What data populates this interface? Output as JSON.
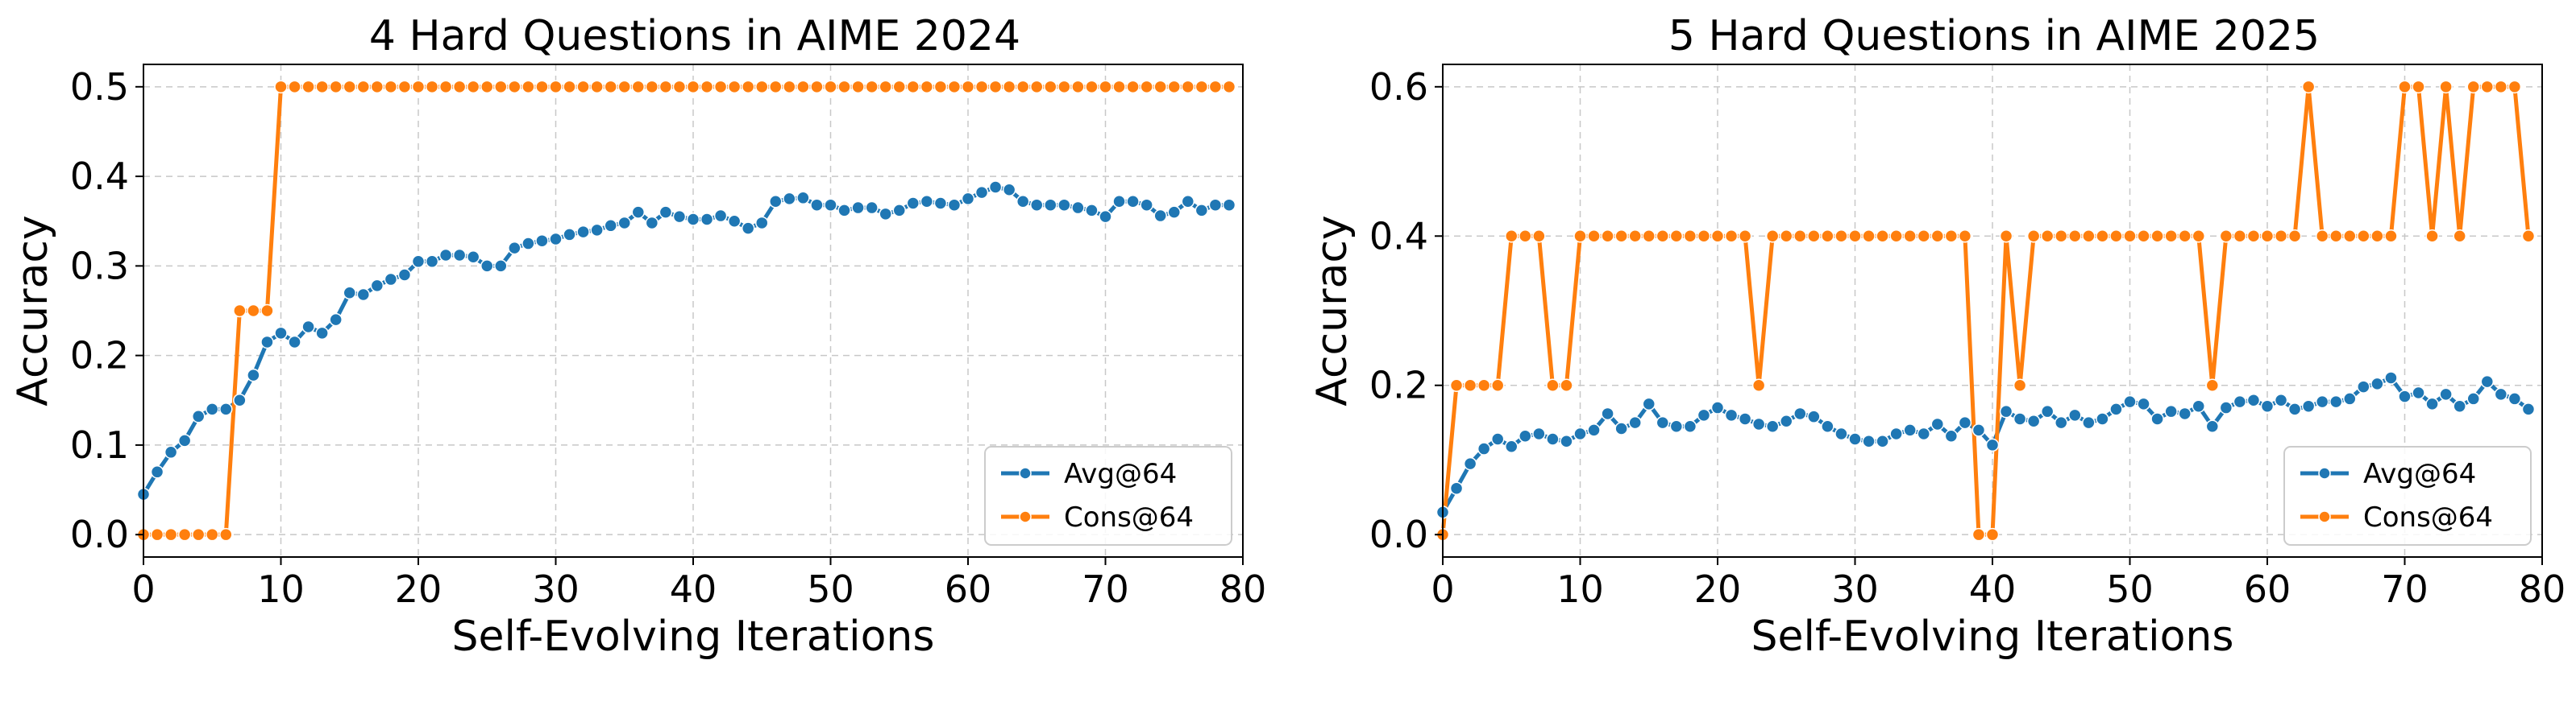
{
  "chart_data": [
    {
      "type": "line",
      "title": "4 Hard Questions in AIME 2024",
      "xlabel": "Self-Evolving Iterations",
      "ylabel": "Accuracy",
      "xlim": [
        0,
        80
      ],
      "ylim": [
        -0.025,
        0.525
      ],
      "xticks": [
        0,
        10,
        20,
        30,
        40,
        50,
        60,
        70,
        80
      ],
      "xtick_labels": [
        "0",
        "10",
        "20",
        "30",
        "40",
        "50",
        "60",
        "70",
        "80"
      ],
      "yticks": [
        0.0,
        0.1,
        0.2,
        0.3,
        0.4,
        0.5
      ],
      "ytick_labels": [
        "0.0",
        "0.1",
        "0.2",
        "0.3",
        "0.4",
        "0.5"
      ],
      "grid": true,
      "legend_position": "bottom-right",
      "series": [
        {
          "name": "Avg@64",
          "color": "#1f77b4",
          "x": [
            0,
            1,
            2,
            3,
            4,
            5,
            6,
            7,
            8,
            9,
            10,
            11,
            12,
            13,
            14,
            15,
            16,
            17,
            18,
            19,
            20,
            21,
            22,
            23,
            24,
            25,
            26,
            27,
            28,
            29,
            30,
            31,
            32,
            33,
            34,
            35,
            36,
            37,
            38,
            39,
            40,
            41,
            42,
            43,
            44,
            45,
            46,
            47,
            48,
            49,
            50,
            51,
            52,
            53,
            54,
            55,
            56,
            57,
            58,
            59,
            60,
            61,
            62,
            63,
            64,
            65,
            66,
            67,
            68,
            69,
            70,
            71,
            72,
            73,
            74,
            75,
            76,
            77,
            78,
            79
          ],
          "values": [
            0.045,
            0.07,
            0.092,
            0.105,
            0.132,
            0.14,
            0.14,
            0.15,
            0.178,
            0.215,
            0.225,
            0.215,
            0.232,
            0.225,
            0.24,
            0.27,
            0.268,
            0.278,
            0.285,
            0.29,
            0.305,
            0.305,
            0.312,
            0.312,
            0.31,
            0.3,
            0.3,
            0.32,
            0.325,
            0.328,
            0.33,
            0.335,
            0.338,
            0.34,
            0.345,
            0.348,
            0.36,
            0.348,
            0.36,
            0.355,
            0.352,
            0.352,
            0.356,
            0.35,
            0.342,
            0.348,
            0.372,
            0.375,
            0.376,
            0.368,
            0.368,
            0.362,
            0.365,
            0.365,
            0.358,
            0.362,
            0.37,
            0.372,
            0.37,
            0.368,
            0.375,
            0.382,
            0.388,
            0.385,
            0.372,
            0.368,
            0.368,
            0.368,
            0.365,
            0.362,
            0.355,
            0.372,
            0.372,
            0.368,
            0.356,
            0.36,
            0.372,
            0.362,
            0.368,
            0.368
          ]
        },
        {
          "name": "Cons@64",
          "color": "#ff7f0e",
          "x": [
            0,
            1,
            2,
            3,
            4,
            5,
            6,
            7,
            8,
            9,
            10,
            11,
            12,
            13,
            14,
            15,
            16,
            17,
            18,
            19,
            20,
            21,
            22,
            23,
            24,
            25,
            26,
            27,
            28,
            29,
            30,
            31,
            32,
            33,
            34,
            35,
            36,
            37,
            38,
            39,
            40,
            41,
            42,
            43,
            44,
            45,
            46,
            47,
            48,
            49,
            50,
            51,
            52,
            53,
            54,
            55,
            56,
            57,
            58,
            59,
            60,
            61,
            62,
            63,
            64,
            65,
            66,
            67,
            68,
            69,
            70,
            71,
            72,
            73,
            74,
            75,
            76,
            77,
            78,
            79
          ],
          "values": [
            0,
            0,
            0,
            0,
            0,
            0,
            0,
            0.25,
            0.25,
            0.25,
            0.5,
            0.5,
            0.5,
            0.5,
            0.5,
            0.5,
            0.5,
            0.5,
            0.5,
            0.5,
            0.5,
            0.5,
            0.5,
            0.5,
            0.5,
            0.5,
            0.5,
            0.5,
            0.5,
            0.5,
            0.5,
            0.5,
            0.5,
            0.5,
            0.5,
            0.5,
            0.5,
            0.5,
            0.5,
            0.5,
            0.5,
            0.5,
            0.5,
            0.5,
            0.5,
            0.5,
            0.5,
            0.5,
            0.5,
            0.5,
            0.5,
            0.5,
            0.5,
            0.5,
            0.5,
            0.5,
            0.5,
            0.5,
            0.5,
            0.5,
            0.5,
            0.5,
            0.5,
            0.5,
            0.5,
            0.5,
            0.5,
            0.5,
            0.5,
            0.5,
            0.5,
            0.5,
            0.5,
            0.5,
            0.5,
            0.5,
            0.5,
            0.5,
            0.5,
            0.5
          ]
        }
      ]
    },
    {
      "type": "line",
      "title": "5 Hard Questions in AIME 2025",
      "xlabel": "Self-Evolving Iterations",
      "ylabel": "Accuracy",
      "xlim": [
        0,
        80
      ],
      "ylim": [
        -0.03,
        0.63
      ],
      "xticks": [
        0,
        10,
        20,
        30,
        40,
        50,
        60,
        70,
        80
      ],
      "xtick_labels": [
        "0",
        "10",
        "20",
        "30",
        "40",
        "50",
        "60",
        "70",
        "80"
      ],
      "yticks": [
        0.0,
        0.2,
        0.4,
        0.6
      ],
      "ytick_labels": [
        "0.0",
        "0.2",
        "0.4",
        "0.6"
      ],
      "grid": true,
      "legend_position": "bottom-right",
      "series": [
        {
          "name": "Avg@64",
          "color": "#1f77b4",
          "x": [
            0,
            1,
            2,
            3,
            4,
            5,
            6,
            7,
            8,
            9,
            10,
            11,
            12,
            13,
            14,
            15,
            16,
            17,
            18,
            19,
            20,
            21,
            22,
            23,
            24,
            25,
            26,
            27,
            28,
            29,
            30,
            31,
            32,
            33,
            34,
            35,
            36,
            37,
            38,
            39,
            40,
            41,
            42,
            43,
            44,
            45,
            46,
            47,
            48,
            49,
            50,
            51,
            52,
            53,
            54,
            55,
            56,
            57,
            58,
            59,
            60,
            61,
            62,
            63,
            64,
            65,
            66,
            67,
            68,
            69,
            70,
            71,
            72,
            73,
            74,
            75,
            76,
            77,
            78,
            79
          ],
          "values": [
            0.03,
            0.062,
            0.095,
            0.115,
            0.128,
            0.118,
            0.132,
            0.135,
            0.128,
            0.125,
            0.135,
            0.14,
            0.162,
            0.142,
            0.15,
            0.175,
            0.15,
            0.145,
            0.145,
            0.16,
            0.17,
            0.16,
            0.155,
            0.148,
            0.145,
            0.152,
            0.162,
            0.158,
            0.145,
            0.135,
            0.128,
            0.125,
            0.125,
            0.135,
            0.14,
            0.135,
            0.148,
            0.132,
            0.15,
            0.14,
            0.12,
            0.165,
            0.155,
            0.152,
            0.165,
            0.15,
            0.16,
            0.15,
            0.155,
            0.168,
            0.178,
            0.175,
            0.155,
            0.165,
            0.162,
            0.172,
            0.145,
            0.17,
            0.178,
            0.18,
            0.172,
            0.18,
            0.168,
            0.172,
            0.178,
            0.178,
            0.182,
            0.198,
            0.202,
            0.21,
            0.185,
            0.19,
            0.175,
            0.188,
            0.172,
            0.182,
            0.205,
            0.188,
            0.182,
            0.168
          ]
        },
        {
          "name": "Cons@64",
          "color": "#ff7f0e",
          "x": [
            0,
            1,
            2,
            3,
            4,
            5,
            6,
            7,
            8,
            9,
            10,
            11,
            12,
            13,
            14,
            15,
            16,
            17,
            18,
            19,
            20,
            21,
            22,
            23,
            24,
            25,
            26,
            27,
            28,
            29,
            30,
            31,
            32,
            33,
            34,
            35,
            36,
            37,
            38,
            39,
            40,
            41,
            42,
            43,
            44,
            45,
            46,
            47,
            48,
            49,
            50,
            51,
            52,
            53,
            54,
            55,
            56,
            57,
            58,
            59,
            60,
            61,
            62,
            63,
            64,
            65,
            66,
            67,
            68,
            69,
            70,
            71,
            72,
            73,
            74,
            75,
            76,
            77,
            78,
            79
          ],
          "values": [
            0,
            0.2,
            0.2,
            0.2,
            0.2,
            0.4,
            0.4,
            0.4,
            0.2,
            0.2,
            0.4,
            0.4,
            0.4,
            0.4,
            0.4,
            0.4,
            0.4,
            0.4,
            0.4,
            0.4,
            0.4,
            0.4,
            0.4,
            0.2,
            0.4,
            0.4,
            0.4,
            0.4,
            0.4,
            0.4,
            0.4,
            0.4,
            0.4,
            0.4,
            0.4,
            0.4,
            0.4,
            0.4,
            0.4,
            0,
            0,
            0.4,
            0.2,
            0.4,
            0.4,
            0.4,
            0.4,
            0.4,
            0.4,
            0.4,
            0.4,
            0.4,
            0.4,
            0.4,
            0.4,
            0.4,
            0.2,
            0.4,
            0.4,
            0.4,
            0.4,
            0.4,
            0.4,
            0.6,
            0.4,
            0.4,
            0.4,
            0.4,
            0.4,
            0.4,
            0.6,
            0.6,
            0.4,
            0.6,
            0.4,
            0.6,
            0.6,
            0.6,
            0.6,
            0.4
          ]
        }
      ]
    }
  ]
}
